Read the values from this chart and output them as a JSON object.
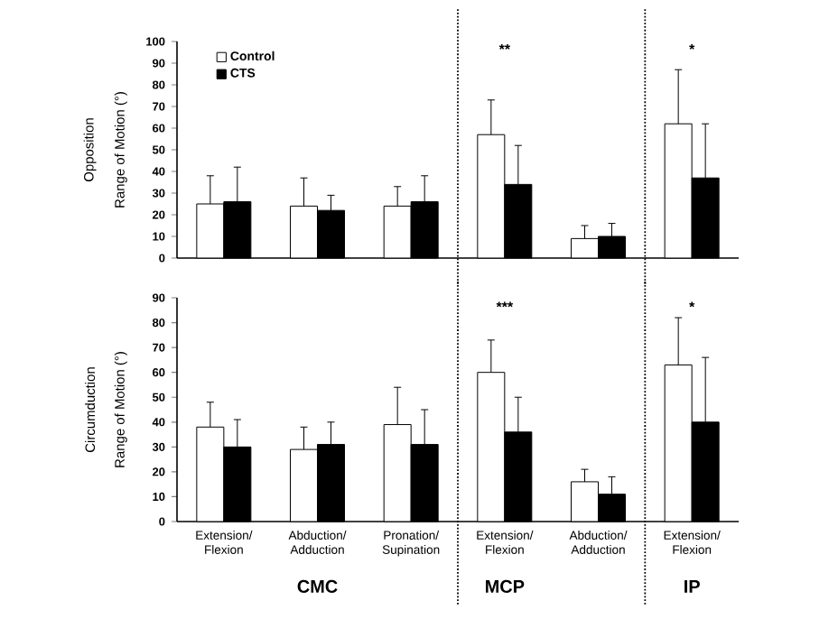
{
  "chart_data": [
    {
      "type": "bar",
      "title": "Opposition",
      "ylabel": "Range  of Motion  (°)",
      "categories": [
        null,
        null,
        null,
        null,
        null,
        null
      ],
      "series": [
        {
          "name": "Control",
          "color": "#ffffff",
          "values": [
            25,
            24,
            24,
            57,
            9,
            62
          ],
          "errors": [
            [
              25,
              38
            ],
            [
              24,
              37
            ],
            [
              24,
              33
            ],
            [
              57,
              73
            ],
            [
              9,
              15
            ],
            [
              62,
              87
            ]
          ]
        },
        {
          "name": "CTS",
          "color": "#000000",
          "values": [
            26,
            22,
            26,
            34,
            10,
            37
          ],
          "errors": [
            [
              26,
              42
            ],
            [
              22,
              29
            ],
            [
              26,
              38
            ],
            [
              34,
              52
            ],
            [
              10,
              16
            ],
            [
              37,
              62
            ]
          ]
        }
      ],
      "ylim": [
        0,
        100
      ],
      "yticks": [
        0,
        10,
        20,
        30,
        40,
        50,
        60,
        70,
        80,
        90,
        100
      ],
      "tick_labels": "y",
      "legend": "top left",
      "grid": false,
      "annotations": [
        "**",
        "*"
      ]
    },
    {
      "type": "bar",
      "title": "Circumduction",
      "ylabel": "Range  of Motion  (°)",
      "categories": [
        "Extension/ Flexion",
        "Abduction/ Adduction",
        "Pronation/ Supination",
        "Extension/ Flexion",
        "Abduction/ Adduction",
        "Extension/ Flexion"
      ],
      "series": [
        {
          "color": "#ffffff",
          "values": [
            38,
            29,
            39,
            60,
            16,
            63
          ],
          "errors": [
            [
              38,
              48
            ],
            [
              29,
              38
            ],
            [
              39,
              54
            ],
            [
              60,
              73
            ],
            [
              16,
              21
            ],
            [
              63,
              82
            ]
          ]
        },
        {
          "color": "#000000",
          "values": [
            30,
            31,
            31,
            36,
            11,
            40
          ],
          "errors": [
            [
              30,
              41
            ],
            [
              31,
              40
            ],
            [
              31,
              45
            ],
            [
              36,
              50
            ],
            [
              11,
              18
            ],
            [
              40,
              66
            ]
          ]
        }
      ],
      "ylim": [
        0,
        90
      ],
      "yticks": [
        0,
        10,
        20,
        30,
        40,
        50,
        60,
        70,
        80,
        90
      ],
      "legend": false,
      "grid": false,
      "annotations": [
        "***",
        "*",
        "CMC",
        "MCP",
        "IP"
      ]
    }
  ]
}
